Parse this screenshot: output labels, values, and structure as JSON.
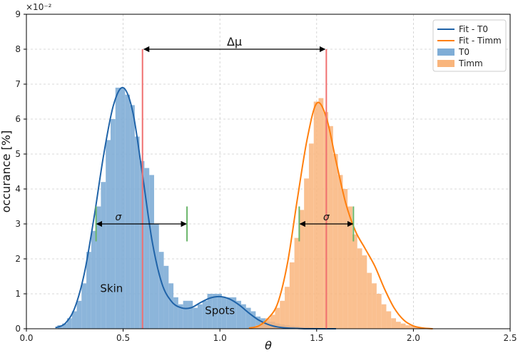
{
  "chart_data": {
    "type": "histogram",
    "xlabel": "θ",
    "ylabel": "occurance [%]",
    "xlim": [
      0.0,
      2.5
    ],
    "ylim": [
      0.0,
      9.0
    ],
    "y_multiplier_label": "×10⁻²",
    "grid": true,
    "legend_position": "top-right",
    "x_ticks": [
      "0.0",
      "0.5",
      "1.0",
      "1.5",
      "2.0",
      "2.5"
    ],
    "y_ticks": [
      "0",
      "1",
      "2",
      "3",
      "4",
      "5",
      "6",
      "7",
      "8",
      "9"
    ],
    "colors": {
      "t0_bar": "#7fadd6",
      "t0_line": "#1f63a8",
      "timm_bar": "#f9b57c",
      "timm_line": "#ff7f0e",
      "mean_line": "#f07070",
      "sigma_tick": "#6ab56a"
    },
    "legend": [
      {
        "name": "Fit - T0",
        "key": "t0_fit"
      },
      {
        "name": "Fit - Timm",
        "key": "timm_fit"
      },
      {
        "name": "T0",
        "key": "t0_hist"
      },
      {
        "name": "Timm",
        "key": "timm_hist"
      }
    ],
    "series": [
      {
        "name": "T0",
        "kind": "histogram",
        "bin_width": 0.025,
        "x": [
          0.16,
          0.185,
          0.21,
          0.235,
          0.26,
          0.285,
          0.31,
          0.335,
          0.36,
          0.385,
          0.41,
          0.435,
          0.46,
          0.485,
          0.51,
          0.535,
          0.56,
          0.585,
          0.61,
          0.635,
          0.66,
          0.685,
          0.71,
          0.735,
          0.76,
          0.785,
          0.81,
          0.835,
          0.86,
          0.885,
          0.91,
          0.935,
          0.96,
          0.985,
          1.01,
          1.035,
          1.06,
          1.085,
          1.11,
          1.135,
          1.16,
          1.185,
          1.21,
          1.235,
          1.26,
          1.285,
          1.31,
          1.335,
          1.36,
          1.385,
          1.41,
          1.435,
          1.46,
          1.485,
          1.51,
          1.535,
          1.56,
          1.585,
          1.61
        ],
        "values": [
          0.1,
          0.15,
          0.3,
          0.5,
          0.8,
          1.3,
          2.2,
          2.8,
          3.5,
          4.2,
          5.4,
          6.0,
          6.9,
          6.9,
          6.7,
          6.4,
          5.5,
          4.8,
          4.6,
          4.4,
          3.0,
          2.2,
          1.8,
          1.3,
          0.9,
          0.7,
          0.8,
          0.8,
          0.6,
          0.7,
          0.8,
          1.0,
          1.0,
          1.0,
          0.9,
          0.9,
          0.9,
          0.8,
          0.7,
          0.6,
          0.5,
          0.35,
          0.3,
          0.2,
          0.2,
          0.15,
          0.12,
          0.1,
          0.08,
          0.07,
          0.05,
          0.05,
          0.04,
          0.03,
          0.02,
          0.02,
          0.01,
          0.01,
          0.01
        ]
      },
      {
        "name": "Timm",
        "kind": "histogram",
        "bin_width": 0.025,
        "x": [
          1.16,
          1.185,
          1.21,
          1.235,
          1.26,
          1.285,
          1.31,
          1.335,
          1.36,
          1.385,
          1.41,
          1.435,
          1.46,
          1.485,
          1.51,
          1.535,
          1.56,
          1.585,
          1.61,
          1.635,
          1.66,
          1.685,
          1.71,
          1.735,
          1.76,
          1.785,
          1.81,
          1.835,
          1.86,
          1.885,
          1.91,
          1.935,
          1.96,
          1.985,
          2.01,
          2.035,
          2.06,
          2.085
        ],
        "values": [
          0.05,
          0.1,
          0.2,
          0.3,
          0.4,
          0.6,
          0.8,
          1.2,
          1.9,
          2.6,
          3.4,
          4.3,
          5.3,
          6.5,
          6.6,
          6.2,
          5.8,
          5.0,
          4.4,
          4.0,
          3.5,
          2.7,
          2.3,
          2.1,
          1.6,
          1.3,
          1.0,
          0.7,
          0.5,
          0.3,
          0.2,
          0.15,
          0.1,
          0.08,
          0.05,
          0.03,
          0.02,
          0.01
        ]
      },
      {
        "name": "Fit - T0",
        "kind": "line",
        "x": [
          0.15,
          0.2,
          0.25,
          0.3,
          0.35,
          0.4,
          0.45,
          0.5,
          0.55,
          0.6,
          0.65,
          0.7,
          0.75,
          0.8,
          0.85,
          0.9,
          0.95,
          1.0,
          1.05,
          1.1,
          1.15,
          1.2,
          1.25,
          1.3,
          1.35,
          1.4,
          1.45,
          1.5,
          1.55,
          1.6
        ],
        "values": [
          0.03,
          0.15,
          0.6,
          1.6,
          3.2,
          5.0,
          6.4,
          6.9,
          6.2,
          4.4,
          2.5,
          1.3,
          0.78,
          0.6,
          0.6,
          0.75,
          0.88,
          0.92,
          0.85,
          0.68,
          0.45,
          0.25,
          0.12,
          0.05,
          0.02,
          0.01,
          0.0,
          0.0,
          0.0,
          0.0
        ]
      },
      {
        "name": "Fit - Timm",
        "kind": "line",
        "x": [
          1.15,
          1.2,
          1.25,
          1.3,
          1.35,
          1.4,
          1.45,
          1.5,
          1.55,
          1.6,
          1.65,
          1.7,
          1.75,
          1.8,
          1.85,
          1.9,
          1.95,
          2.0,
          2.05,
          2.1
        ],
        "values": [
          0.02,
          0.08,
          0.3,
          0.75,
          1.9,
          3.7,
          5.4,
          6.45,
          6.05,
          4.8,
          3.6,
          2.8,
          2.3,
          1.8,
          1.15,
          0.6,
          0.25,
          0.08,
          0.02,
          0.0
        ]
      }
    ],
    "mean_lines": [
      {
        "x": 0.6,
        "y_top": 8.0
      },
      {
        "x": 1.55,
        "y_top": 8.0
      }
    ],
    "sigma_markers": [
      {
        "x_left": 0.36,
        "x_right": 0.83,
        "y": 3.0,
        "tick_bottom": 2.5,
        "tick_top": 3.5
      },
      {
        "x_left": 1.41,
        "x_right": 1.69,
        "y": 3.0,
        "tick_bottom": 2.5,
        "tick_top": 3.5
      }
    ],
    "delta_arrow": {
      "x_from": 0.6,
      "x_to": 1.55,
      "y": 8.0
    },
    "annotations": {
      "delta_mu": "Δμ",
      "sigma": "σ",
      "skin": "Skin",
      "spots": "Spots"
    }
  }
}
